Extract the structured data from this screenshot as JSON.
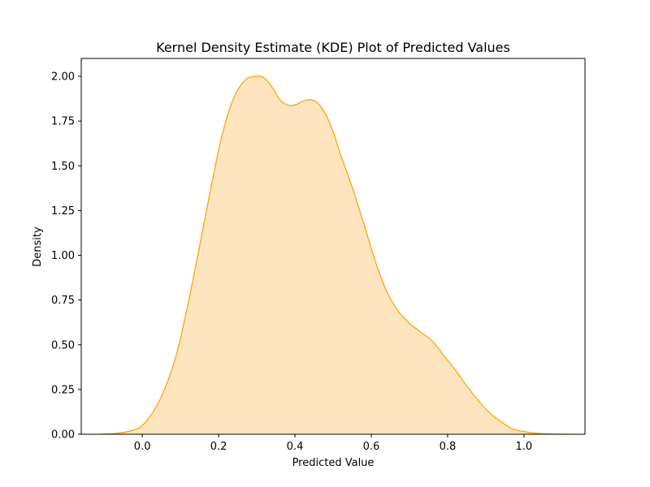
{
  "chart_data": {
    "type": "area",
    "title": "Kernel Density Estimate (KDE) Plot of Predicted Values",
    "xlabel": "Predicted Value",
    "ylabel": "Density",
    "xlim": [
      -0.16,
      1.16
    ],
    "ylim": [
      0,
      2.1
    ],
    "xticks": [
      0.0,
      0.2,
      0.4,
      0.6,
      0.8,
      1.0
    ],
    "xtick_labels": [
      "0.0",
      "0.2",
      "0.4",
      "0.6",
      "0.8",
      "1.0"
    ],
    "yticks": [
      0.0,
      0.25,
      0.5,
      0.75,
      1.0,
      1.25,
      1.5,
      1.75,
      2.0
    ],
    "ytick_labels": [
      "0.00",
      "0.25",
      "0.50",
      "0.75",
      "1.00",
      "1.25",
      "1.50",
      "1.75",
      "2.00"
    ],
    "grid": false,
    "line_color": "#FFA500",
    "fill_color": "#FFE5BF",
    "series": [
      {
        "x": [
          -0.11,
          -0.08,
          -0.05,
          -0.02,
          0.0,
          0.03,
          0.06,
          0.09,
          0.12,
          0.15,
          0.18,
          0.21,
          0.24,
          0.27,
          0.3,
          0.32,
          0.34,
          0.36,
          0.38,
          0.4,
          0.42,
          0.44,
          0.46,
          0.48,
          0.5,
          0.52,
          0.55,
          0.58,
          0.61,
          0.64,
          0.67,
          0.7,
          0.73,
          0.76,
          0.79,
          0.82,
          0.85,
          0.88,
          0.91,
          0.94,
          0.97,
          1.0,
          1.03,
          1.06,
          1.08,
          1.1,
          1.12
        ],
        "y": [
          0.0,
          0.003,
          0.01,
          0.025,
          0.05,
          0.13,
          0.26,
          0.45,
          0.73,
          1.05,
          1.38,
          1.68,
          1.88,
          1.98,
          2.0,
          1.99,
          1.94,
          1.87,
          1.84,
          1.84,
          1.86,
          1.87,
          1.85,
          1.79,
          1.69,
          1.56,
          1.38,
          1.18,
          0.97,
          0.8,
          0.69,
          0.62,
          0.57,
          0.52,
          0.44,
          0.36,
          0.27,
          0.19,
          0.12,
          0.07,
          0.03,
          0.015,
          0.006,
          0.002,
          0.001,
          0.0,
          0.0
        ]
      }
    ]
  }
}
